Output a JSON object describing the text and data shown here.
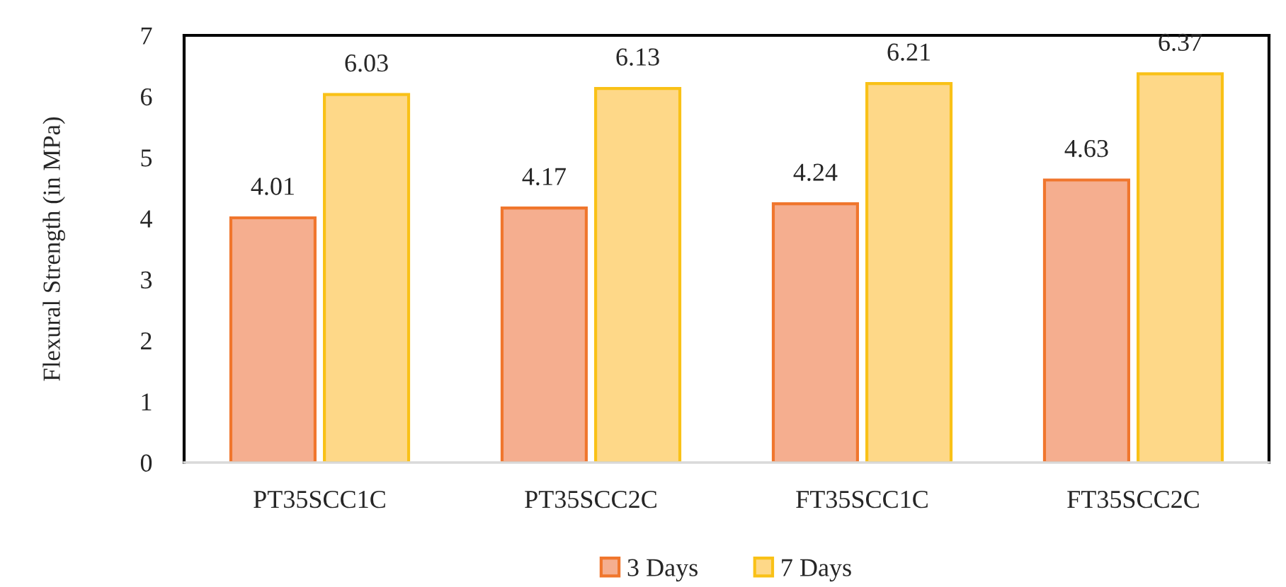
{
  "chart_data": {
    "type": "bar",
    "ylabel": "Flexural Strength (in MPa)",
    "categories": [
      "PT35SCC1C",
      "PT35SCC2C",
      "FT35SCC1C",
      "FT35SCC2C"
    ],
    "series": [
      {
        "name": "3 Days",
        "color": "#f5ae8f",
        "values": [
          4.01,
          4.17,
          4.24,
          4.63
        ]
      },
      {
        "name": "7 Days",
        "color": "#fed888",
        "values": [
          6.03,
          6.13,
          6.21,
          6.37
        ]
      }
    ],
    "ylim": [
      0,
      7
    ],
    "yticks": [
      0,
      1,
      2,
      3,
      4,
      5,
      6,
      7
    ],
    "data_labels": true,
    "grid": false,
    "legend": "bottom"
  }
}
